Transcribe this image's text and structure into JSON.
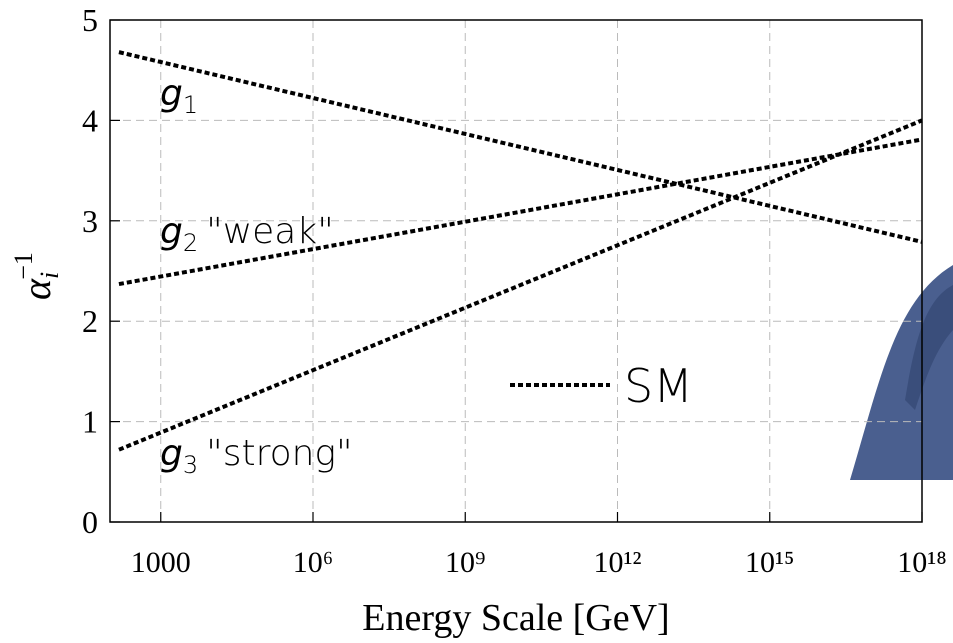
{
  "chart_data": {
    "type": "line",
    "xlabel": "Energy Scale [GeV]",
    "ylabel": {
      "symbol": "α",
      "sub": "i",
      "sup": "−1"
    },
    "xscale": "log",
    "xlim": [
      100,
      1e+18
    ],
    "xticks": [
      1000,
      {
        "value": 1000000.0,
        "label": "10⁶"
      },
      {
        "value": 1000000000.0,
        "label": "10⁹"
      },
      {
        "value": 1000000000000.0,
        "label": "10¹²"
      },
      {
        "value": 1000000000000000.0,
        "label": "10¹⁵"
      },
      {
        "value": 1e+18,
        "label": "10¹⁸"
      }
    ],
    "ylim": [
      0,
      5
    ],
    "yticks": [
      0,
      1,
      2,
      3,
      4,
      5
    ],
    "grid": true,
    "x": [
      150,
      1e+18
    ],
    "series": [
      {
        "name": "SM",
        "color": "#000000",
        "values": [
          4.68,
          2.79
        ]
      },
      {
        "color": "#000000",
        "values": [
          2.37,
          3.81
        ]
      },
      {
        "color": "#000000",
        "values": [
          0.72,
          4.0
        ]
      }
    ],
    "annotations": [
      {
        "symbol": "g",
        "sub": "1",
        "text": ""
      },
      {
        "symbol": "g",
        "sub": "2",
        "text": "\"weak\""
      },
      {
        "symbol": "g",
        "sub": "3",
        "text": "\"strong\""
      }
    ]
  }
}
